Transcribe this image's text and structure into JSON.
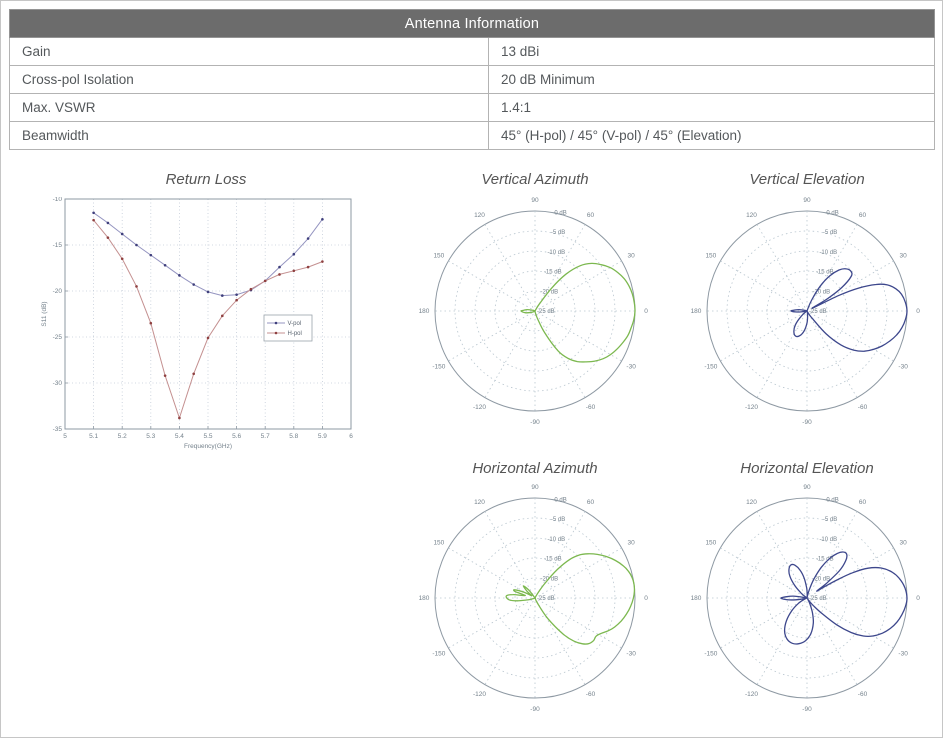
{
  "table": {
    "header": "Antenna Information",
    "rows": [
      {
        "label": "Gain",
        "value": "13 dBi"
      },
      {
        "label": "Cross-pol Isolation",
        "value": "20 dB Minimum"
      },
      {
        "label": "Max. VSWR",
        "value": "1.4:1"
      },
      {
        "label": "Beamwidth",
        "value": "45° (H-pol) / 45° (V-pol) / 45° (Elevation)"
      }
    ]
  },
  "colors": {
    "table_header_bg": "#6c6c6c",
    "polar_green": "#7cb84f",
    "polar_navy": "#3d478c",
    "grid": "#c3ccd8",
    "polar_grid": "#b9c6cf",
    "axis": "#8e99a3",
    "tick_text": "#75828c",
    "vpol_line": "#9494c0",
    "vpol_marker": "#3f3f7c",
    "hpol_line": "#c49090",
    "hpol_marker": "#8f4040"
  },
  "chart_data": [
    {
      "type": "line",
      "title": "Return Loss",
      "xlabel": "Frequency(GHz)",
      "ylabel": "S11 (dB)",
      "xlim": [
        5,
        6
      ],
      "ylim": [
        -35,
        -10
      ],
      "xticks": [
        "5",
        "5.1",
        "5.2",
        "5.3",
        "5.4",
        "5.5",
        "5.6",
        "5.7",
        "5.8",
        "5.9",
        "6"
      ],
      "yticks": [
        "-10",
        "-15",
        "-20",
        "-25",
        "-30",
        "-35"
      ],
      "grid": "dotted",
      "legend_position": "middle-right",
      "x": [
        5.1,
        5.15,
        5.2,
        5.25,
        5.3,
        5.35,
        5.4,
        5.45,
        5.5,
        5.55,
        5.6,
        5.65,
        5.7,
        5.75,
        5.8,
        5.85,
        5.9
      ],
      "series": [
        {
          "name": "V-pol",
          "line_color": "#9494c0",
          "marker_color": "#3f3f7c",
          "values": [
            -11.5,
            -12.6,
            -13.8,
            -15.0,
            -16.1,
            -17.2,
            -18.3,
            -19.3,
            -20.1,
            -20.5,
            -20.4,
            -19.9,
            -18.9,
            -17.4,
            -16.0,
            -14.3,
            -12.2
          ]
        },
        {
          "name": "H-pol",
          "line_color": "#c49090",
          "marker_color": "#8f4040",
          "values": [
            -12.3,
            -14.2,
            -16.5,
            -19.5,
            -23.5,
            -29.2,
            -33.8,
            -29.0,
            -25.1,
            -22.7,
            -21.0,
            -19.8,
            -18.9,
            -18.2,
            -17.8,
            -17.4,
            -16.8
          ]
        }
      ]
    },
    {
      "type": "polar",
      "title": "Vertical Azimuth",
      "color": "#7cb84f",
      "floor_db": -25,
      "r_labels": [
        "0 dB",
        "-5 dB",
        "-10 dB",
        "-15 dB",
        "-20 dB",
        "-25 dB"
      ],
      "angle_ticks": [
        0,
        30,
        60,
        90,
        120,
        150,
        180,
        -150,
        -120,
        -90,
        -60,
        -30
      ],
      "points": [
        [
          -180,
          -21.5
        ],
        [
          -170,
          -22.5
        ],
        [
          -160,
          -24
        ],
        [
          -150,
          -24.8
        ],
        [
          -120,
          -25
        ],
        [
          -90,
          -25
        ],
        [
          -80,
          -24.6
        ],
        [
          -72,
          -23
        ],
        [
          -66,
          -19
        ],
        [
          -60,
          -13.5
        ],
        [
          -55,
          -10.5
        ],
        [
          -50,
          -8.5
        ],
        [
          -45,
          -7
        ],
        [
          -40,
          -5.5
        ],
        [
          -35,
          -4.2
        ],
        [
          -30,
          -3.2
        ],
        [
          -25,
          -2.4
        ],
        [
          -20,
          -1.7
        ],
        [
          -15,
          -1
        ],
        [
          -10,
          -0.6
        ],
        [
          -5,
          -0.2
        ],
        [
          0,
          0
        ],
        [
          5,
          -0.1
        ],
        [
          10,
          -0.3
        ],
        [
          15,
          -0.7
        ],
        [
          20,
          -1.3
        ],
        [
          25,
          -2.2
        ],
        [
          30,
          -3.3
        ],
        [
          35,
          -4.8
        ],
        [
          40,
          -6.5
        ],
        [
          45,
          -9
        ],
        [
          50,
          -13
        ],
        [
          54,
          -18
        ],
        [
          58,
          -23
        ],
        [
          62,
          -24.7
        ],
        [
          90,
          -25
        ],
        [
          120,
          -25
        ],
        [
          150,
          -25
        ],
        [
          160,
          -24.5
        ],
        [
          170,
          -23
        ],
        [
          176,
          -22.2
        ]
      ]
    },
    {
      "type": "polar",
      "title": "Vertical Elevation",
      "color": "#3d478c",
      "floor_db": -25,
      "r_labels": [
        "0 dB",
        "-5 dB",
        "-10 dB",
        "-15 dB",
        "-20 dB",
        "-25 dB"
      ],
      "angle_ticks": [
        0,
        30,
        60,
        90,
        120,
        150,
        180,
        -150,
        -120,
        -90,
        -60,
        -30
      ],
      "points": [
        [
          -180,
          -21
        ],
        [
          -174,
          -22.5
        ],
        [
          -166,
          -24.6
        ],
        [
          -150,
          -25
        ],
        [
          -145,
          -24.7
        ],
        [
          -138,
          -23
        ],
        [
          -130,
          -20.5
        ],
        [
          -122,
          -18.8
        ],
        [
          -114,
          -18.1
        ],
        [
          -106,
          -18.6
        ],
        [
          -98,
          -20
        ],
        [
          -90,
          -22
        ],
        [
          -83,
          -23.8
        ],
        [
          -76,
          -24.6
        ],
        [
          -70,
          -24.9
        ],
        [
          -64,
          -24.8
        ],
        [
          -58,
          -24
        ],
        [
          -54,
          -22.5
        ],
        [
          -50,
          -17.5
        ],
        [
          -45,
          -13
        ],
        [
          -40,
          -9.8
        ],
        [
          -35,
          -7.5
        ],
        [
          -30,
          -5.8
        ],
        [
          -25,
          -4.3
        ],
        [
          -20,
          -3
        ],
        [
          -15,
          -1.8
        ],
        [
          -10,
          -0.9
        ],
        [
          -5,
          -0.3
        ],
        [
          0,
          0
        ],
        [
          5,
          -0.3
        ],
        [
          10,
          -1
        ],
        [
          14,
          -2.1
        ],
        [
          18,
          -3.9
        ],
        [
          21,
          -6.5
        ],
        [
          24,
          -11
        ],
        [
          26,
          -16
        ],
        [
          28,
          -23.5
        ],
        [
          31,
          -19
        ],
        [
          34,
          -14.5
        ],
        [
          38,
          -11
        ],
        [
          42,
          -10.2
        ],
        [
          47,
          -10.6
        ],
        [
          52,
          -12
        ],
        [
          57,
          -14.5
        ],
        [
          62,
          -18
        ],
        [
          67,
          -22
        ],
        [
          71,
          -24.5
        ],
        [
          80,
          -25
        ],
        [
          100,
          -25
        ],
        [
          120,
          -25
        ],
        [
          140,
          -25
        ],
        [
          155,
          -25
        ],
        [
          163,
          -24.5
        ],
        [
          170,
          -23
        ],
        [
          176,
          -21.8
        ]
      ]
    },
    {
      "type": "polar",
      "title": "Horizontal Azimuth",
      "color": "#7cb84f",
      "floor_db": -25,
      "r_labels": [
        "0 dB",
        "-5 dB",
        "-10 dB",
        "-15 dB",
        "-20 dB",
        "-25 dB"
      ],
      "angle_ticks": [
        0,
        30,
        60,
        90,
        120,
        150,
        180,
        -150,
        -120,
        -90,
        -60,
        -30
      ],
      "points": [
        [
          -176,
          -18.5
        ],
        [
          -171,
          -20.5
        ],
        [
          -167,
          -22.8
        ],
        [
          -162,
          -24.3
        ],
        [
          -150,
          -25
        ],
        [
          -120,
          -25
        ],
        [
          -90,
          -25
        ],
        [
          -70,
          -25
        ],
        [
          -64,
          -23.5
        ],
        [
          -58,
          -19
        ],
        [
          -52,
          -13.5
        ],
        [
          -48,
          -10.5
        ],
        [
          -44,
          -8.5
        ],
        [
          -40,
          -7.3
        ],
        [
          -36,
          -6.9
        ],
        [
          -32,
          -7
        ],
        [
          -28,
          -6.2
        ],
        [
          -24,
          -4.9
        ],
        [
          -20,
          -3.8
        ],
        [
          -15,
          -2.7
        ],
        [
          -10,
          -1.8
        ],
        [
          -5,
          -1
        ],
        [
          0,
          -0.4
        ],
        [
          4,
          -0.1
        ],
        [
          8,
          0
        ],
        [
          12,
          -0.2
        ],
        [
          16,
          -0.7
        ],
        [
          20,
          -1.5
        ],
        [
          25,
          -2.8
        ],
        [
          30,
          -4.3
        ],
        [
          35,
          -6
        ],
        [
          40,
          -7.8
        ],
        [
          44,
          -9.5
        ],
        [
          48,
          -12
        ],
        [
          52,
          -16
        ],
        [
          56,
          -20.5
        ],
        [
          60,
          -23.5
        ],
        [
          65,
          -24.8
        ],
        [
          90,
          -25
        ],
        [
          120,
          -25
        ],
        [
          128,
          -22.5
        ],
        [
          134,
          -20.8
        ],
        [
          140,
          -22.5
        ],
        [
          146,
          -24
        ],
        [
          152,
          -22
        ],
        [
          158,
          -19.5
        ],
        [
          162,
          -19.8
        ],
        [
          166,
          -22.5
        ],
        [
          171,
          -19.5
        ],
        [
          176,
          -17.8
        ]
      ]
    },
    {
      "type": "polar",
      "title": "Horizontal Elevation",
      "color": "#3d478c",
      "floor_db": -25,
      "r_labels": [
        "0 dB",
        "-5 dB",
        "-10 dB",
        "-15 dB",
        "-20 dB",
        "-25 dB"
      ],
      "angle_ticks": [
        0,
        30,
        60,
        90,
        120,
        150,
        180,
        -150,
        -120,
        -90,
        -60,
        -30
      ],
      "points": [
        [
          -180,
          -18.5
        ],
        [
          -174,
          -20.5
        ],
        [
          -168,
          -23.5
        ],
        [
          -160,
          -25
        ],
        [
          -155,
          -24.3
        ],
        [
          -148,
          -22.5
        ],
        [
          -140,
          -20
        ],
        [
          -132,
          -17.3
        ],
        [
          -124,
          -15
        ],
        [
          -116,
          -13.6
        ],
        [
          -108,
          -13.1
        ],
        [
          -100,
          -13.4
        ],
        [
          -92,
          -14.3
        ],
        [
          -84,
          -16
        ],
        [
          -76,
          -18.5
        ],
        [
          -70,
          -21
        ],
        [
          -64,
          -23.3
        ],
        [
          -58,
          -24.6
        ],
        [
          -54,
          -24
        ],
        [
          -50,
          -22.5
        ],
        [
          -46,
          -19.5
        ],
        [
          -42,
          -15
        ],
        [
          -38,
          -11
        ],
        [
          -34,
          -8
        ],
        [
          -30,
          -6
        ],
        [
          -25,
          -4.2
        ],
        [
          -20,
          -2.8
        ],
        [
          -15,
          -1.7
        ],
        [
          -10,
          -0.9
        ],
        [
          -5,
          -0.3
        ],
        [
          0,
          0
        ],
        [
          6,
          -0.4
        ],
        [
          12,
          -1.4
        ],
        [
          17,
          -2.8
        ],
        [
          22,
          -5
        ],
        [
          26,
          -8
        ],
        [
          29,
          -12
        ],
        [
          31,
          -16
        ],
        [
          33,
          -20
        ],
        [
          35,
          -22
        ],
        [
          37,
          -19
        ],
        [
          40,
          -14.5
        ],
        [
          44,
          -11.5
        ],
        [
          48,
          -10.2
        ],
        [
          52,
          -10.4
        ],
        [
          56,
          -11.6
        ],
        [
          60,
          -13.5
        ],
        [
          65,
          -16.5
        ],
        [
          70,
          -20
        ],
        [
          75,
          -23
        ],
        [
          80,
          -24.7
        ],
        [
          86,
          -24.2
        ],
        [
          92,
          -22.5
        ],
        [
          98,
          -20
        ],
        [
          104,
          -17.8
        ],
        [
          110,
          -16.3
        ],
        [
          116,
          -15.8
        ],
        [
          122,
          -16.5
        ],
        [
          128,
          -18
        ],
        [
          134,
          -20.5
        ],
        [
          140,
          -23
        ],
        [
          146,
          -24.7
        ],
        [
          155,
          -25
        ],
        [
          165,
          -25
        ],
        [
          172,
          -21.5
        ]
      ]
    }
  ]
}
